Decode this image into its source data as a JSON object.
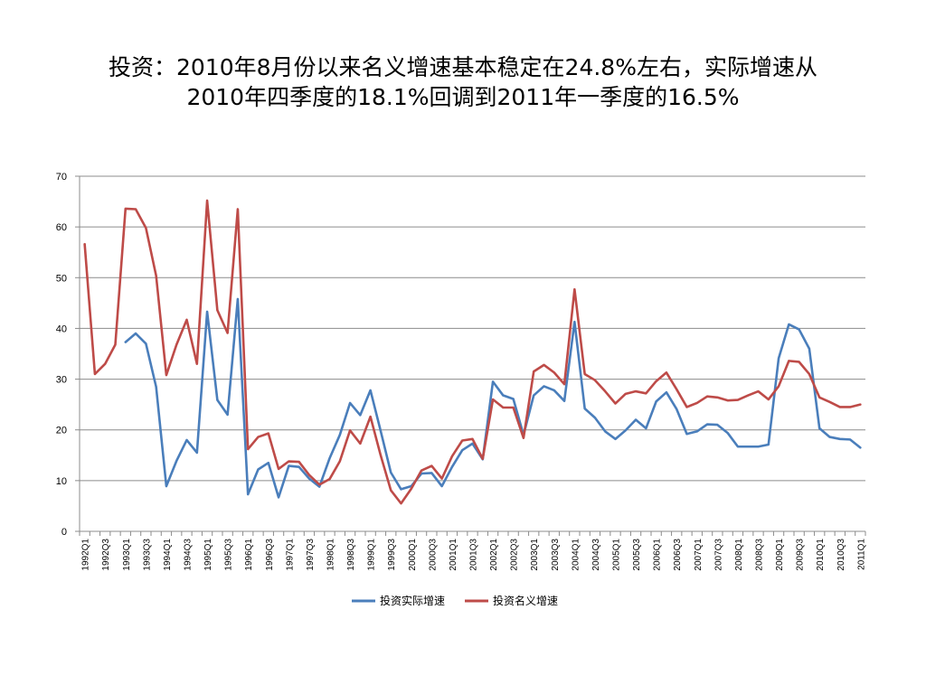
{
  "chart_data": {
    "type": "line",
    "title_line1": "投资：2010年8月份以来名义增速基本稳定在24.8%左右，实际增速从",
    "title_line2": "2010年四季度的18.1%回调到2011年一季度的16.5%",
    "ylim": [
      0,
      70
    ],
    "yticks": [
      0,
      10,
      20,
      30,
      40,
      50,
      60,
      70
    ],
    "grid": true,
    "legend_position": "bottom",
    "categories": [
      "1992Q1",
      "1992Q2",
      "1992Q3",
      "1992Q4",
      "1993Q1",
      "1993Q2",
      "1993Q3",
      "1993Q4",
      "1994Q1",
      "1994Q2",
      "1994Q3",
      "1994Q4",
      "1995Q1",
      "1995Q2",
      "1995Q3",
      "1995Q4",
      "1996Q1",
      "1996Q2",
      "1996Q3",
      "1996Q4",
      "1997Q1",
      "1997Q2",
      "1997Q3",
      "1997Q4",
      "1998Q1",
      "1998Q2",
      "1998Q3",
      "1998Q4",
      "1999Q1",
      "1999Q2",
      "1999Q3",
      "1999Q4",
      "2000Q1",
      "2000Q2",
      "2000Q3",
      "2000Q4",
      "2001Q1",
      "2001Q2",
      "2001Q3",
      "2001Q4",
      "2002Q1",
      "2002Q2",
      "2002Q3",
      "2002Q4",
      "2003Q1",
      "2003Q2",
      "2003Q3",
      "2003Q4",
      "2004Q1",
      "2004Q2",
      "2004Q3",
      "2004Q4",
      "2005Q1",
      "2005Q2",
      "2005Q3",
      "2005Q4",
      "2006Q1",
      "2006Q2",
      "2006Q3",
      "2006Q4",
      "2007Q1",
      "2007Q2",
      "2007Q3",
      "2007Q4",
      "2008Q1",
      "2008Q2",
      "2008Q3",
      "2008Q4",
      "2009Q1",
      "2009Q2",
      "2009Q3",
      "2009Q4",
      "2010Q1",
      "2010Q2",
      "2010Q3",
      "2010Q4",
      "2011Q1"
    ],
    "series": [
      {
        "name": "投资实际增速",
        "color": "#4a7ebb",
        "values": [
          null,
          null,
          null,
          null,
          37.3,
          39.0,
          37.0,
          28.5,
          8.9,
          13.9,
          18.0,
          15.5,
          43.3,
          25.9,
          23.0,
          45.8,
          7.3,
          12.2,
          13.5,
          6.7,
          12.9,
          12.7,
          10.4,
          8.8,
          14.4,
          19.0,
          25.3,
          22.9,
          27.8,
          19.8,
          11.6,
          8.3,
          8.9,
          11.4,
          11.5,
          8.9,
          12.7,
          16.0,
          17.3,
          14.2,
          29.5,
          26.8,
          26.1,
          19.0,
          26.8,
          28.6,
          27.8,
          25.7,
          41.3,
          24.2,
          22.4,
          19.7,
          18.2,
          19.9,
          22.0,
          20.3,
          25.6,
          27.4,
          24.1,
          19.2,
          19.7,
          21.1,
          21.0,
          19.4,
          16.7,
          16.7,
          16.7,
          17.1,
          34.1,
          40.8,
          39.8,
          36.0,
          20.3,
          18.6,
          18.2,
          18.1,
          16.5
        ]
      },
      {
        "name": "投资名义增速",
        "color": "#be4b48",
        "values": [
          56.6,
          31.0,
          33.0,
          36.8,
          63.6,
          63.5,
          59.8,
          50.4,
          30.8,
          36.8,
          41.7,
          33.0,
          65.2,
          43.6,
          39.1,
          63.5,
          16.2,
          18.6,
          19.3,
          12.3,
          13.8,
          13.7,
          11.1,
          9.2,
          10.3,
          13.8,
          19.9,
          17.3,
          22.6,
          15.0,
          8.1,
          5.5,
          8.4,
          12.0,
          12.9,
          10.4,
          14.8,
          17.9,
          18.2,
          14.3,
          26.0,
          24.4,
          24.4,
          18.4,
          31.5,
          32.8,
          31.3,
          29.0,
          47.7,
          31.0,
          29.8,
          27.6,
          25.2,
          27.1,
          27.6,
          27.2,
          29.6,
          31.3,
          28.0,
          24.5,
          25.3,
          26.6,
          26.4,
          25.8,
          25.9,
          26.8,
          27.6,
          26.0,
          28.6,
          33.6,
          33.4,
          31.0,
          26.4,
          25.5,
          24.5,
          24.5,
          25.0
        ]
      }
    ]
  }
}
